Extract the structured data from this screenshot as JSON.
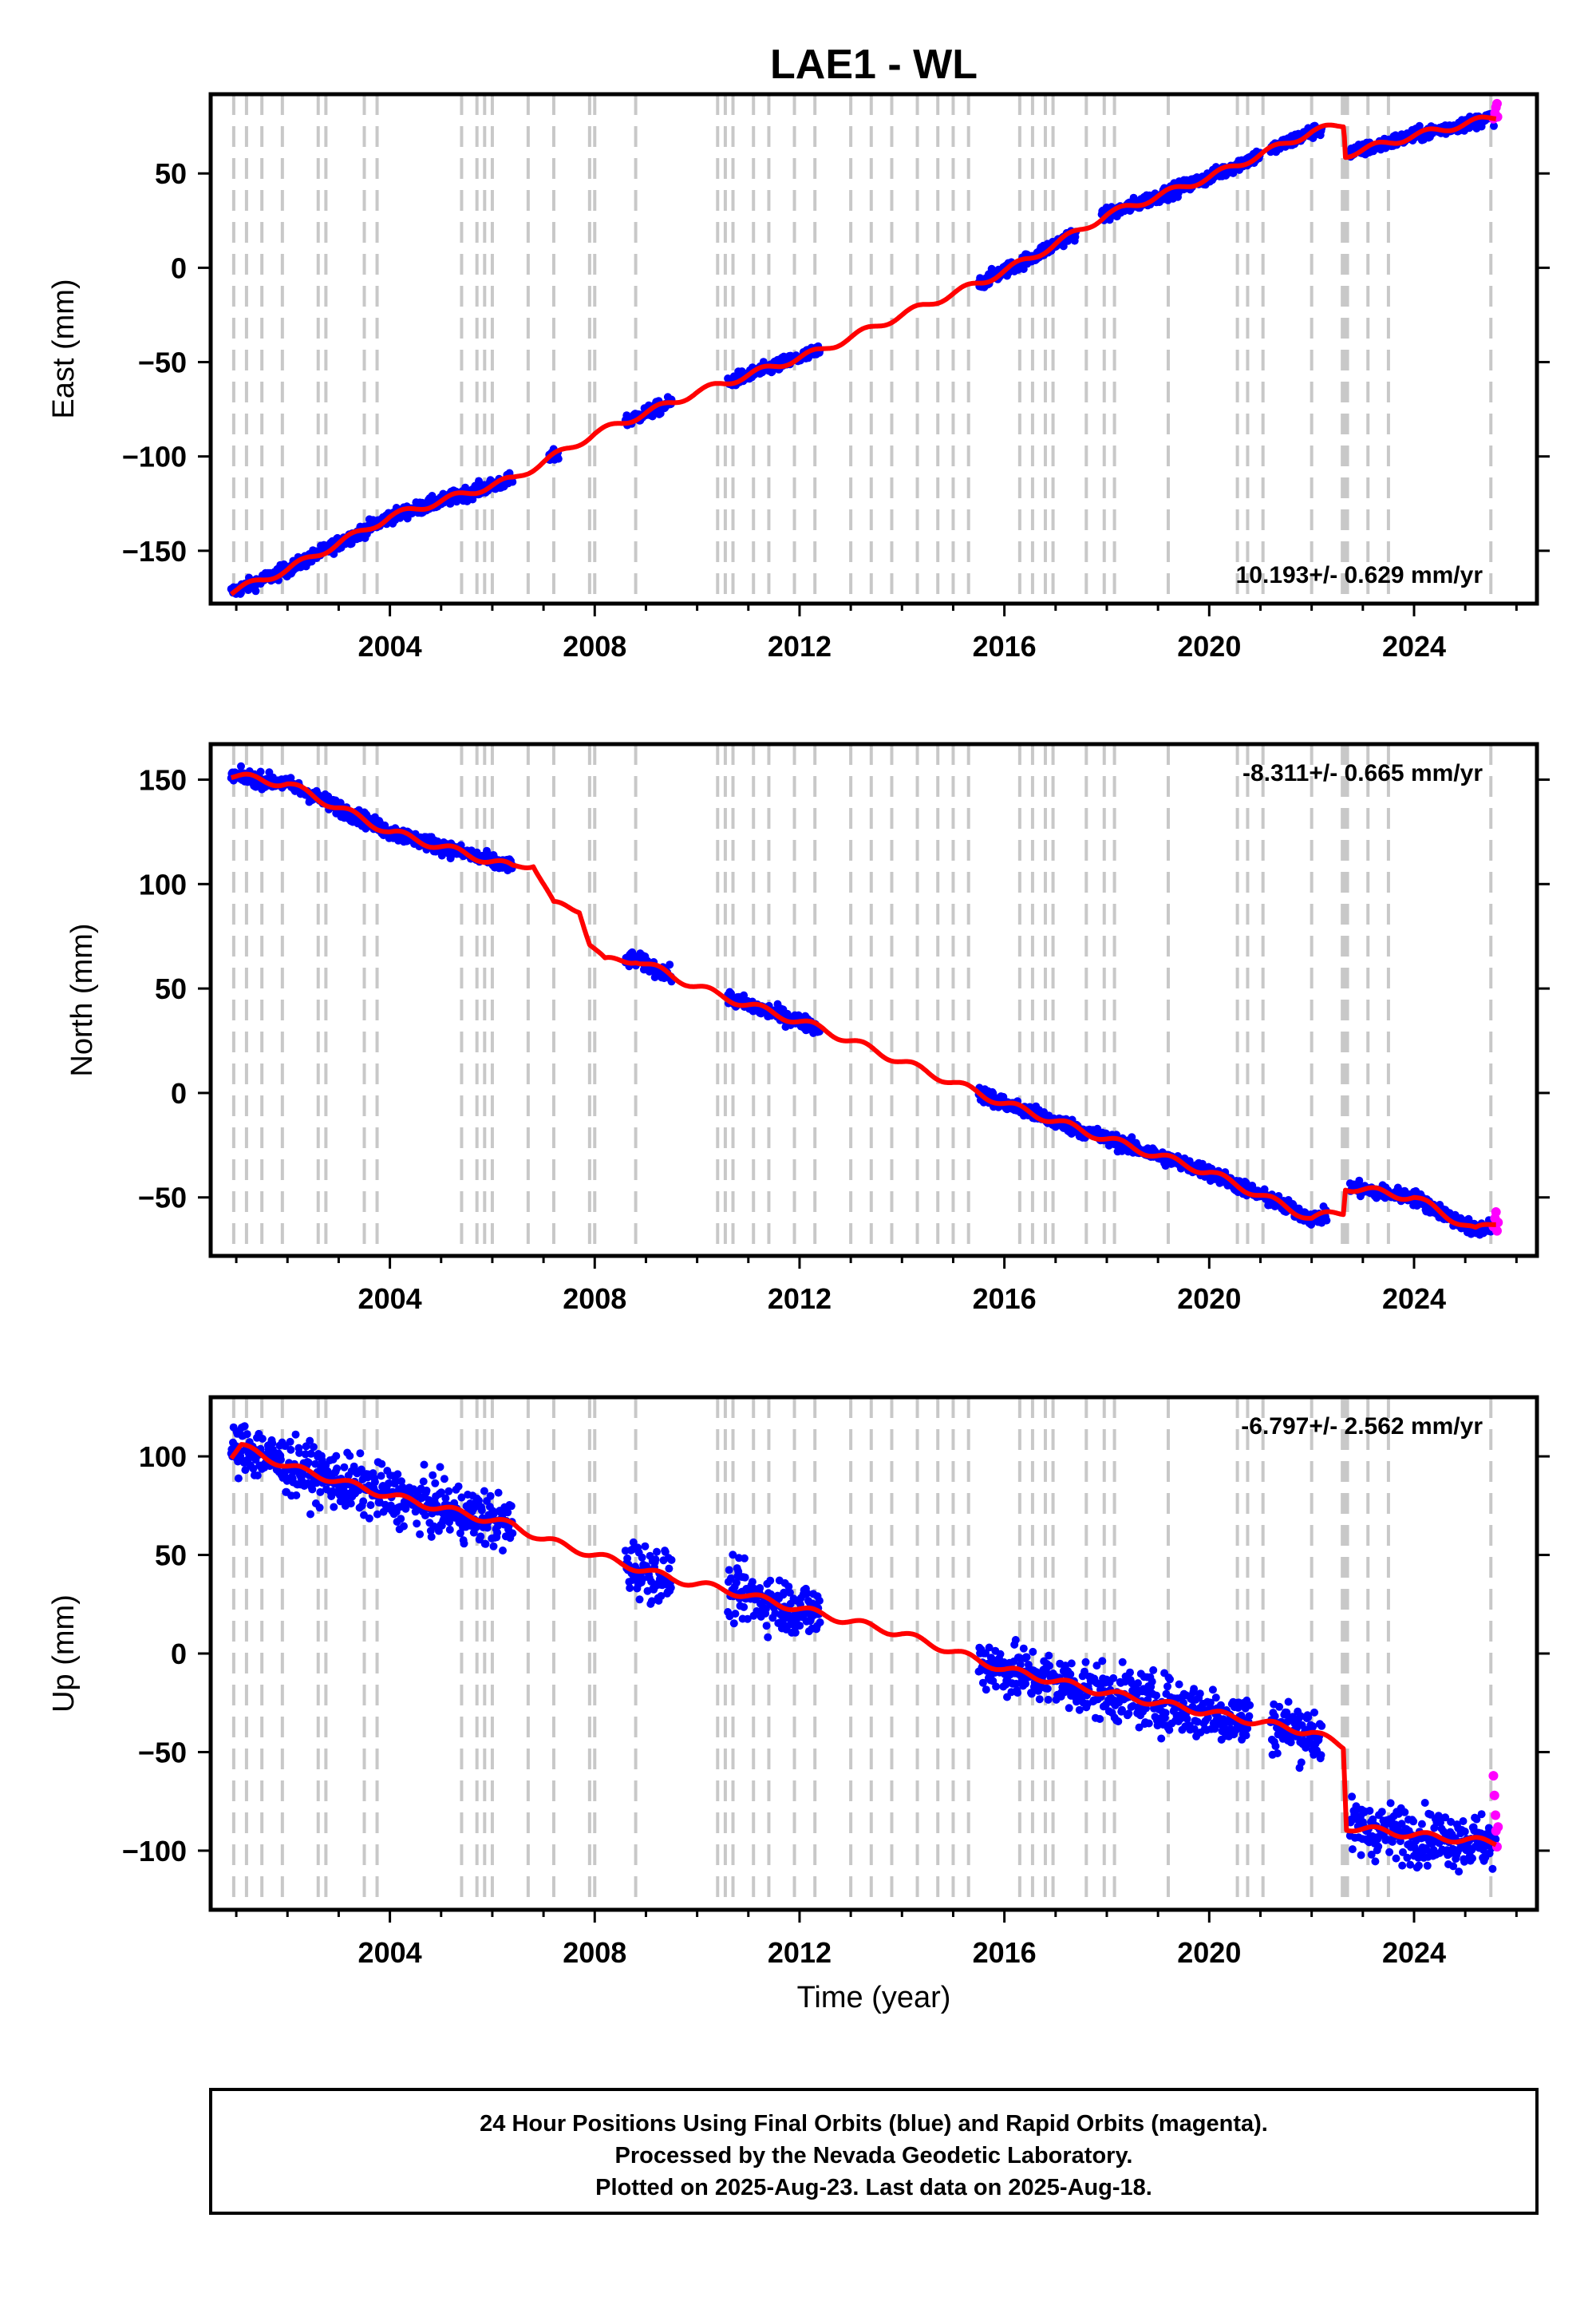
{
  "figure": {
    "title": "LAE1 - WL",
    "caption_lines": [
      "24 Hour Positions Using Final Orbits (blue) and Rapid Orbits (magenta).",
      "Processed by the Nevada Geodetic Laboratory.",
      "Plotted on 2025-Aug-23. Last data on 2025-Aug-18."
    ]
  },
  "colors": {
    "final_orbits": "#0000ff",
    "rapid_orbits": "#ff00ff",
    "model": "#ff0000",
    "event_lines": "#c8c8c8"
  },
  "chart_data": [
    {
      "type": "scatter",
      "component": "East",
      "ylabel": "East (mm)",
      "xlabel": "",
      "rate_text": "10.193+/- 0.629 mm/yr",
      "rate_position": "bottom-right",
      "xlim": [
        2000.5,
        2026.4
      ],
      "ylim": [
        -178,
        92
      ],
      "xticks": [
        2004,
        2008,
        2012,
        2016,
        2020,
        2024
      ],
      "yticks": [
        -150,
        -100,
        -50,
        0,
        50
      ],
      "ytick_labels": [
        "−150",
        "−100",
        "−50",
        "0",
        "50"
      ],
      "data_segments": [
        [
          2000.9,
          2006.4
        ],
        [
          2007.1,
          2007.3
        ],
        [
          2008.6,
          2009.5
        ],
        [
          2010.6,
          2012.4
        ],
        [
          2015.5,
          2017.4
        ],
        [
          2017.9,
          2021.0
        ],
        [
          2021.2,
          2022.2
        ],
        [
          2022.75,
          2025.6
        ]
      ],
      "scatter_noise": 2.5,
      "model_trend": [
        [
          2000.9,
          -172
        ],
        [
          2002.0,
          -160
        ],
        [
          2004.0,
          -132
        ],
        [
          2006.4,
          -112
        ],
        [
          2008.0,
          -88
        ],
        [
          2010.0,
          -66
        ],
        [
          2012.4,
          -44
        ],
        [
          2014.0,
          -25
        ],
        [
          2015.6,
          -7
        ],
        [
          2016.5,
          5
        ],
        [
          2018.0,
          28
        ],
        [
          2020.0,
          48
        ],
        [
          2022.0,
          72
        ],
        [
          2022.63,
          76
        ],
        [
          2022.66,
          60
        ],
        [
          2024.0,
          70
        ],
        [
          2025.6,
          80
        ]
      ],
      "rapid_points": [
        [
          2025.55,
          79
        ],
        [
          2025.58,
          82
        ],
        [
          2025.6,
          85
        ],
        [
          2025.62,
          87
        ],
        [
          2025.63,
          80
        ]
      ]
    },
    {
      "type": "scatter",
      "component": "North",
      "ylabel": "North (mm)",
      "xlabel": "",
      "rate_text": "-8.311+/- 0.665 mm/yr",
      "rate_position": "top-right",
      "xlim": [
        2000.5,
        2026.4
      ],
      "ylim": [
        -78,
        167
      ],
      "xticks": [
        2004,
        2008,
        2012,
        2016,
        2020,
        2024
      ],
      "yticks": [
        -50,
        0,
        50,
        100,
        150
      ],
      "ytick_labels": [
        "−50",
        "0",
        "50",
        "100",
        "150"
      ],
      "data_segments": [
        [
          2000.9,
          2006.4
        ],
        [
          2008.6,
          2009.5
        ],
        [
          2010.6,
          2012.4
        ],
        [
          2015.5,
          2022.3
        ],
        [
          2022.75,
          2025.6
        ]
      ],
      "scatter_noise": 2.5,
      "model_trend": [
        [
          2000.9,
          152
        ],
        [
          2002.0,
          148
        ],
        [
          2004.0,
          125
        ],
        [
          2006.4,
          108
        ],
        [
          2006.8,
          110
        ],
        [
          2007.2,
          90
        ],
        [
          2007.7,
          88
        ],
        [
          2007.9,
          72
        ],
        [
          2008.2,
          63
        ],
        [
          2008.8,
          64
        ],
        [
          2009.6,
          55
        ],
        [
          2010.4,
          47
        ],
        [
          2012.4,
          31
        ],
        [
          2014.0,
          15
        ],
        [
          2016.0,
          -5
        ],
        [
          2018.0,
          -22
        ],
        [
          2020.0,
          -38
        ],
        [
          2022.0,
          -60
        ],
        [
          2022.62,
          -57
        ],
        [
          2022.66,
          -45
        ],
        [
          2024.0,
          -50
        ],
        [
          2025.2,
          -66
        ],
        [
          2025.6,
          -62
        ]
      ],
      "rapid_points": [
        [
          2025.55,
          -64
        ],
        [
          2025.58,
          -60
        ],
        [
          2025.6,
          -57
        ],
        [
          2025.62,
          -66
        ],
        [
          2025.64,
          -62
        ]
      ]
    },
    {
      "type": "scatter",
      "component": "Up",
      "ylabel": "Up (mm)",
      "xlabel": "Time (year)",
      "rate_text": "-6.797+/- 2.562 mm/yr",
      "rate_position": "top-right",
      "xlim": [
        2000.5,
        2026.4
      ],
      "ylim": [
        -130,
        130
      ],
      "xticks": [
        2004,
        2008,
        2012,
        2016,
        2020,
        2024
      ],
      "yticks": [
        -100,
        -50,
        0,
        50,
        100
      ],
      "ytick_labels": [
        "−100",
        "−50",
        "0",
        "50",
        "100"
      ],
      "data_segments": [
        [
          2000.9,
          2006.4
        ],
        [
          2008.6,
          2009.5
        ],
        [
          2010.6,
          2012.4
        ],
        [
          2015.5,
          2020.8
        ],
        [
          2021.2,
          2022.2
        ],
        [
          2022.75,
          2025.6
        ]
      ],
      "scatter_noise": 10,
      "model_trend": [
        [
          2000.9,
          100
        ],
        [
          2001.1,
          105
        ],
        [
          2002.0,
          95
        ],
        [
          2004.0,
          80
        ],
        [
          2006.4,
          65
        ],
        [
          2007.0,
          58
        ],
        [
          2008.0,
          50
        ],
        [
          2009.5,
          38
        ],
        [
          2010.6,
          32
        ],
        [
          2012.4,
          20
        ],
        [
          2014.0,
          10
        ],
        [
          2016.0,
          -8
        ],
        [
          2018.0,
          -20
        ],
        [
          2020.0,
          -30
        ],
        [
          2022.0,
          -40
        ],
        [
          2022.62,
          -47
        ],
        [
          2022.68,
          -88
        ],
        [
          2024.0,
          -92
        ],
        [
          2025.6,
          -96
        ]
      ],
      "rapid_points": [
        [
          2025.55,
          -62
        ],
        [
          2025.57,
          -72
        ],
        [
          2025.59,
          -82
        ],
        [
          2025.6,
          -90
        ],
        [
          2025.62,
          -98
        ],
        [
          2025.64,
          -88
        ]
      ]
    }
  ],
  "event_lines_years": [
    2000.95,
    2001.2,
    2001.5,
    2001.9,
    2002.6,
    2002.75,
    2003.5,
    2003.75,
    2005.4,
    2005.7,
    2005.85,
    2006.0,
    2006.7,
    2007.2,
    2007.9,
    2008.0,
    2008.8,
    2010.4,
    2010.55,
    2010.7,
    2011.1,
    2011.4,
    2011.9,
    2012.3,
    2013.0,
    2013.4,
    2013.8,
    2014.3,
    2014.7,
    2015.0,
    2015.3,
    2016.3,
    2016.55,
    2016.8,
    2016.95,
    2017.6,
    2017.95,
    2018.15,
    2019.2,
    2020.55,
    2020.75,
    2021.05,
    2022.0,
    2022.6,
    2022.65,
    2022.7,
    2023.1,
    2023.5,
    2025.5
  ]
}
